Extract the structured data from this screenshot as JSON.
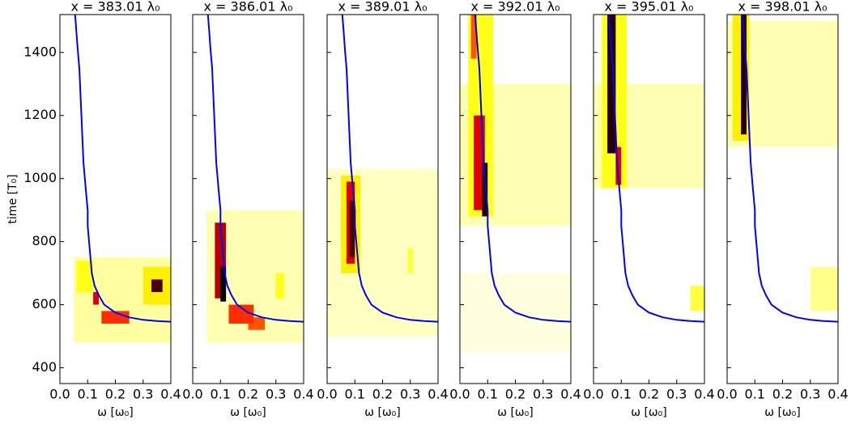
{
  "chart_data": [
    {
      "type": "heatmap",
      "title": "x = 383.01 λ₀",
      "xlabel": "ω [ω₀]",
      "ylabel": "time [T₀]",
      "colormap": "hot_r",
      "xlim": [
        0,
        0.4
      ],
      "ylim": [
        350,
        1520
      ],
      "xticks": [
        {
          "value": 0,
          "label": "0.0"
        },
        {
          "value": 0.1,
          "label": "0.1"
        },
        {
          "value": 0.2,
          "label": "0.2"
        },
        {
          "value": 0.3,
          "label": "0.3"
        },
        {
          "value": 0.4,
          "label": "0.4"
        }
      ],
      "yticks": [
        400,
        600,
        800,
        1000,
        1200,
        1400
      ],
      "cells": [
        {
          "x": [
            0.05,
            0.4
          ],
          "y": [
            480,
            750
          ],
          "value": 0.12
        },
        {
          "x": [
            0.06,
            0.12
          ],
          "y": [
            640,
            740
          ],
          "value": 0.3
        },
        {
          "x": [
            0.3,
            0.4
          ],
          "y": [
            600,
            720
          ],
          "value": 0.35
        },
        {
          "x": [
            0.15,
            0.25
          ],
          "y": [
            540,
            580
          ],
          "value": 0.6
        },
        {
          "x": [
            0.12,
            0.14
          ],
          "y": [
            600,
            640
          ],
          "value": 0.7
        },
        {
          "x": [
            0.33,
            0.37
          ],
          "y": [
            640,
            680
          ],
          "value": 0.9
        }
      ],
      "line": {
        "color": "#0000ff",
        "x": [
          0.055,
          0.06,
          0.065,
          0.07,
          0.075,
          0.08,
          0.085,
          0.09,
          0.095,
          0.1,
          0.1,
          0.105,
          0.11,
          0.115,
          0.125,
          0.14,
          0.16,
          0.2,
          0.25,
          0.3,
          0.35,
          0.4
        ],
        "y": [
          1520,
          1460,
          1400,
          1350,
          1250,
          1150,
          1050,
          1000,
          950,
          900,
          850,
          800,
          750,
          700,
          660,
          630,
          600,
          575,
          560,
          552,
          548,
          546
        ]
      }
    },
    {
      "type": "heatmap",
      "title": "x = 386.01 λ₀",
      "xlabel": "ω [ω₀]",
      "colormap": "hot_r",
      "xlim": [
        0,
        0.4
      ],
      "ylim": [
        350,
        1520
      ],
      "xticks": [
        {
          "value": 0,
          "label": "0.0"
        },
        {
          "value": 0.1,
          "label": "0.1"
        },
        {
          "value": 0.2,
          "label": "0.2"
        },
        {
          "value": 0.3,
          "label": "0.3"
        },
        {
          "value": 0.4,
          "label": "0.4"
        }
      ],
      "yticks": [
        400,
        600,
        800,
        1000,
        1200,
        1400
      ],
      "cells": [
        {
          "x": [
            0.05,
            0.4
          ],
          "y": [
            480,
            900
          ],
          "value": 0.1
        },
        {
          "x": [
            0.3,
            0.33
          ],
          "y": [
            620,
            700
          ],
          "value": 0.3
        },
        {
          "x": [
            0.2,
            0.26
          ],
          "y": [
            520,
            560
          ],
          "value": 0.55
        },
        {
          "x": [
            0.13,
            0.22
          ],
          "y": [
            540,
            600
          ],
          "value": 0.6
        },
        {
          "x": [
            0.08,
            0.12
          ],
          "y": [
            620,
            860
          ],
          "value": 0.75
        },
        {
          "x": [
            0.1,
            0.12
          ],
          "y": [
            610,
            720
          ],
          "value": 1.0
        }
      ],
      "line": {
        "color": "#0000ff",
        "x": [
          0.055,
          0.06,
          0.065,
          0.07,
          0.075,
          0.08,
          0.085,
          0.09,
          0.095,
          0.1,
          0.1,
          0.105,
          0.11,
          0.115,
          0.125,
          0.14,
          0.16,
          0.2,
          0.25,
          0.3,
          0.35,
          0.4
        ],
        "y": [
          1520,
          1460,
          1400,
          1350,
          1250,
          1150,
          1050,
          1000,
          950,
          900,
          850,
          800,
          750,
          700,
          660,
          630,
          600,
          575,
          560,
          552,
          548,
          546
        ]
      }
    },
    {
      "type": "heatmap",
      "title": "x = 389.01 λ₀",
      "xlabel": "ω [ω₀]",
      "colormap": "hot_r",
      "xlim": [
        0,
        0.4
      ],
      "ylim": [
        350,
        1520
      ],
      "xticks": [
        {
          "value": 0,
          "label": "0.0"
        },
        {
          "value": 0.1,
          "label": "0.1"
        },
        {
          "value": 0.2,
          "label": "0.2"
        },
        {
          "value": 0.3,
          "label": "0.3"
        },
        {
          "value": 0.4,
          "label": "0.4"
        }
      ],
      "yticks": [
        400,
        600,
        800,
        1000,
        1200,
        1400
      ],
      "cells": [
        {
          "x": [
            0,
            0.4
          ],
          "y": [
            500,
            1030
          ],
          "value": 0.08
        },
        {
          "x": [
            0.29,
            0.31
          ],
          "y": [
            700,
            780
          ],
          "value": 0.25
        },
        {
          "x": [
            0.05,
            0.12
          ],
          "y": [
            700,
            1010
          ],
          "value": 0.35
        },
        {
          "x": [
            0.07,
            0.1
          ],
          "y": [
            730,
            990
          ],
          "value": 0.7
        },
        {
          "x": [
            0.08,
            0.1
          ],
          "y": [
            750,
            930
          ],
          "value": 0.9
        }
      ],
      "line": {
        "color": "#0000ff",
        "x": [
          0.055,
          0.06,
          0.065,
          0.07,
          0.075,
          0.08,
          0.085,
          0.09,
          0.095,
          0.1,
          0.1,
          0.105,
          0.11,
          0.115,
          0.125,
          0.14,
          0.16,
          0.2,
          0.25,
          0.3,
          0.35,
          0.4
        ],
        "y": [
          1520,
          1460,
          1400,
          1350,
          1250,
          1150,
          1050,
          1000,
          950,
          900,
          850,
          800,
          750,
          700,
          660,
          630,
          600,
          575,
          560,
          552,
          548,
          546
        ]
      }
    },
    {
      "type": "heatmap",
      "title": "x = 392.01 λ₀",
      "xlabel": "ω [ω₀]",
      "colormap": "hot_r",
      "xlim": [
        0,
        0.4
      ],
      "ylim": [
        350,
        1520
      ],
      "xticks": [
        {
          "value": 0,
          "label": "0.0"
        },
        {
          "value": 0.1,
          "label": "0.1"
        },
        {
          "value": 0.2,
          "label": "0.2"
        },
        {
          "value": 0.3,
          "label": "0.3"
        },
        {
          "value": 0.4,
          "label": "0.4"
        }
      ],
      "yticks": [
        400,
        600,
        800,
        1000,
        1200,
        1400
      ],
      "cells": [
        {
          "x": [
            0,
            0.4
          ],
          "y": [
            450,
            700
          ],
          "value": 0.04
        },
        {
          "x": [
            0,
            0.4
          ],
          "y": [
            850,
            1300
          ],
          "value": 0.1
        },
        {
          "x": [
            0.03,
            0.12
          ],
          "y": [
            880,
            1520
          ],
          "value": 0.3
        },
        {
          "x": [
            0.04,
            0.06
          ],
          "y": [
            1380,
            1520
          ],
          "value": 0.55
        },
        {
          "x": [
            0.05,
            0.09
          ],
          "y": [
            900,
            1200
          ],
          "value": 0.7
        },
        {
          "x": [
            0.08,
            0.1
          ],
          "y": [
            880,
            1050
          ],
          "value": 0.95
        }
      ],
      "line": {
        "color": "#0000ff",
        "x": [
          0.055,
          0.06,
          0.065,
          0.07,
          0.075,
          0.08,
          0.085,
          0.09,
          0.095,
          0.1,
          0.1,
          0.105,
          0.11,
          0.115,
          0.125,
          0.14,
          0.16,
          0.2,
          0.25,
          0.3,
          0.35,
          0.4
        ],
        "y": [
          1520,
          1460,
          1400,
          1350,
          1250,
          1150,
          1050,
          1000,
          950,
          900,
          850,
          800,
          750,
          700,
          660,
          630,
          600,
          575,
          560,
          552,
          548,
          546
        ]
      }
    },
    {
      "type": "heatmap",
      "title": "x = 395.01 λ₀",
      "xlabel": "ω [ω₀]",
      "colormap": "hot_r",
      "xlim": [
        0,
        0.4
      ],
      "ylim": [
        350,
        1520
      ],
      "xticks": [
        {
          "value": 0,
          "label": "0.0"
        },
        {
          "value": 0.1,
          "label": "0.1"
        },
        {
          "value": 0.2,
          "label": "0.2"
        },
        {
          "value": 0.3,
          "label": "0.3"
        },
        {
          "value": 0.4,
          "label": "0.4"
        }
      ],
      "yticks": [
        400,
        600,
        800,
        1000,
        1200,
        1400
      ],
      "cells": [
        {
          "x": [
            0,
            0.4
          ],
          "y": [
            970,
            1300
          ],
          "value": 0.1
        },
        {
          "x": [
            0.35,
            0.4
          ],
          "y": [
            580,
            660
          ],
          "value": 0.25
        },
        {
          "x": [
            0.03,
            0.12
          ],
          "y": [
            970,
            1520
          ],
          "value": 0.3
        },
        {
          "x": [
            0.08,
            0.1
          ],
          "y": [
            980,
            1100
          ],
          "value": 0.7
        },
        {
          "x": [
            0.05,
            0.08
          ],
          "y": [
            1080,
            1520
          ],
          "value": 0.95
        }
      ],
      "line": {
        "color": "#0000ff",
        "x": [
          0.055,
          0.06,
          0.065,
          0.07,
          0.075,
          0.08,
          0.085,
          0.09,
          0.095,
          0.1,
          0.1,
          0.105,
          0.11,
          0.115,
          0.125,
          0.14,
          0.16,
          0.2,
          0.25,
          0.3,
          0.35,
          0.4
        ],
        "y": [
          1520,
          1460,
          1400,
          1350,
          1250,
          1150,
          1050,
          1000,
          950,
          900,
          850,
          800,
          750,
          700,
          660,
          630,
          600,
          575,
          560,
          552,
          548,
          546
        ]
      }
    },
    {
      "type": "heatmap",
      "title": "x = 398.01 λ₀",
      "xlabel": "ω [ω₀]",
      "colormap": "hot_r",
      "xlim": [
        0,
        0.4
      ],
      "ylim": [
        350,
        1520
      ],
      "xticks": [
        {
          "value": 0,
          "label": "0.0"
        },
        {
          "value": 0.1,
          "label": "0.1"
        },
        {
          "value": 0.2,
          "label": "0.2"
        },
        {
          "value": 0.3,
          "label": "0.3"
        },
        {
          "value": 0.4,
          "label": "0.4"
        }
      ],
      "yticks": [
        400,
        600,
        800,
        1000,
        1200,
        1400
      ],
      "cells": [
        {
          "x": [
            0,
            0.4
          ],
          "y": [
            1100,
            1500
          ],
          "value": 0.1
        },
        {
          "x": [
            0.3,
            0.4
          ],
          "y": [
            580,
            720
          ],
          "value": 0.15
        },
        {
          "x": [
            0.02,
            0.08
          ],
          "y": [
            1120,
            1520
          ],
          "value": 0.35
        },
        {
          "x": [
            0.05,
            0.07
          ],
          "y": [
            1140,
            1520
          ],
          "value": 0.95
        }
      ],
      "line": {
        "color": "#0000ff",
        "x": [
          0.055,
          0.06,
          0.065,
          0.07,
          0.075,
          0.08,
          0.085,
          0.09,
          0.095,
          0.1,
          0.1,
          0.105,
          0.11,
          0.115,
          0.125,
          0.14,
          0.16,
          0.2,
          0.25,
          0.3,
          0.35,
          0.4
        ],
        "y": [
          1520,
          1460,
          1400,
          1350,
          1250,
          1150,
          1050,
          1000,
          950,
          900,
          850,
          800,
          750,
          700,
          660,
          630,
          600,
          575,
          560,
          552,
          548,
          546
        ]
      }
    }
  ]
}
